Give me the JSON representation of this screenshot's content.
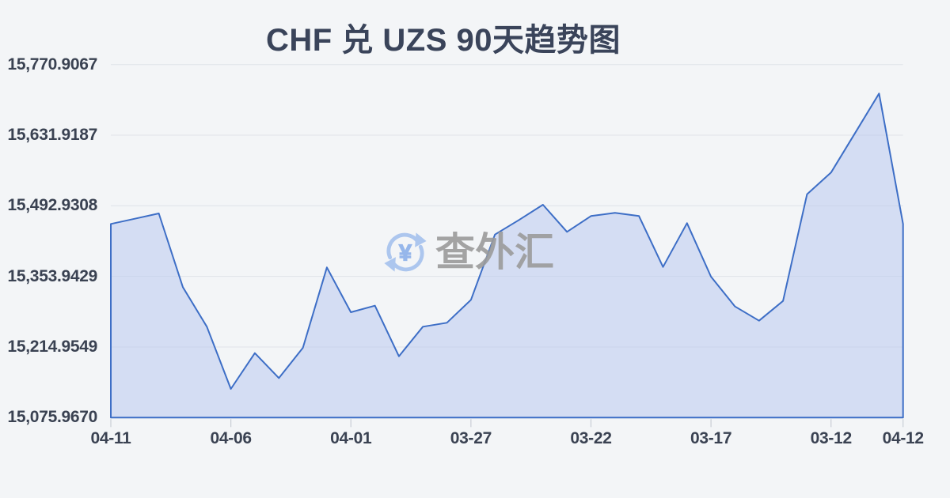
{
  "page": {
    "background": "#f3f5f7"
  },
  "title": {
    "text": "CHF 兑 UZS 90天趋势图",
    "color": "#3a445a"
  },
  "watermark": {
    "icon": "currency-exchange-icon",
    "text": "查外汇",
    "icon_color": "#a5c1ee",
    "symbol": "¥",
    "text_color": "#9b9b9b"
  },
  "chart_data": {
    "type": "area",
    "title": "CHF 兑 UZS 90天趋势图",
    "series_name": "CHF/UZS",
    "values": [
      15457.2,
      15467.5,
      15477.9,
      15332.7,
      15254.9,
      15132.4,
      15202.9,
      15153.7,
      15213.3,
      15371.6,
      15283.4,
      15296.3,
      15196.7,
      15254.9,
      15262.7,
      15307.8,
      15436.4,
      15465.0,
      15495.0,
      15441.6,
      15472.7,
      15479.0,
      15472.7,
      15372.5,
      15458.7,
      15353.4,
      15294.7,
      15266.7,
      15305.6,
      15515.6,
      15558.3,
      15636.1,
      15713.9,
      15457.2
    ],
    "x_tick_labels": [
      "04-11",
      "04-06",
      "04-01",
      "03-27",
      "03-22",
      "03-17",
      "03-12",
      "04-12"
    ],
    "x_tick_indices": [
      0,
      5,
      10,
      15,
      20,
      25,
      30,
      33
    ],
    "y_tick_labels": [
      "15,770.9067",
      "15,631.9187",
      "15,492.9308",
      "15,353.9429",
      "15,214.9549",
      "15,075.9670"
    ],
    "ylim": [
      15075.967,
      15770.9067
    ],
    "grid": "horizontal",
    "legend": "none",
    "line_color": "#3d6ec6",
    "fill_color": "rgba(175,193,238,0.45)",
    "gridline_color": "#e0e4e9",
    "tick_color": "#c9ced6",
    "axis_label_color": "#3a4252"
  }
}
